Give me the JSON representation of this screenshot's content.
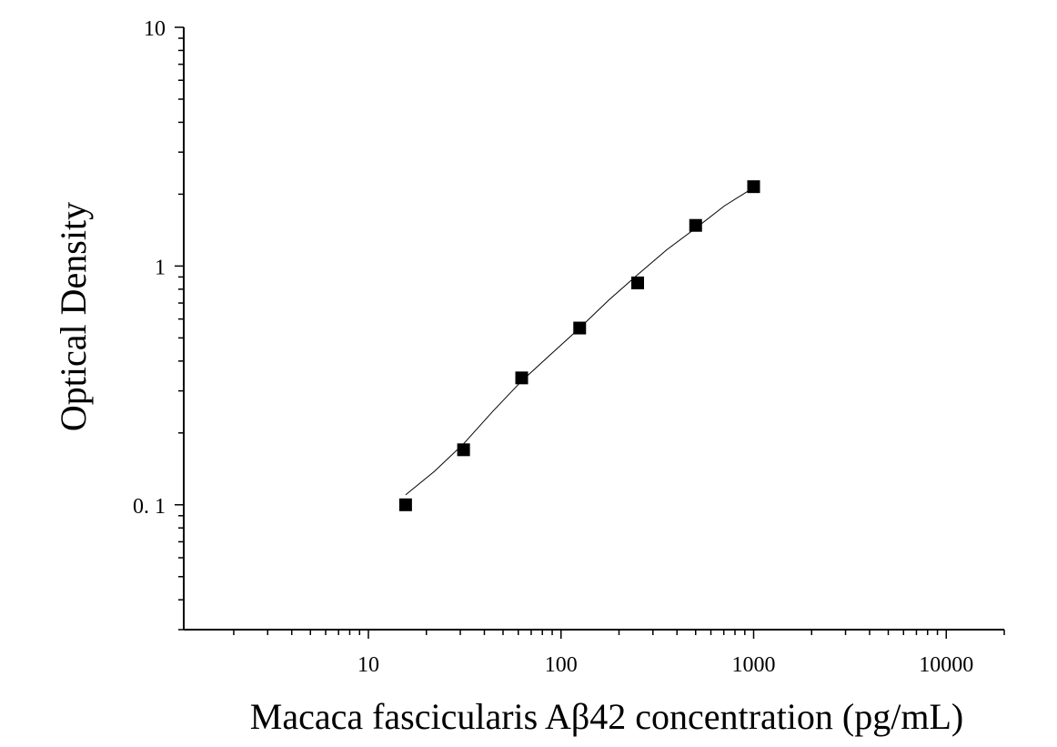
{
  "chart_data": {
    "type": "scatter",
    "xlabel": "Macaca fascicularis Aβ42 concentration (pg/mL)",
    "ylabel": "Optical Density",
    "x_scale": "log",
    "y_scale": "log",
    "xlim": [
      1.1,
      20000
    ],
    "ylim": [
      0.03,
      10
    ],
    "x_ticks": [
      {
        "value": 10,
        "label": "10"
      },
      {
        "value": 100,
        "label": "100"
      },
      {
        "value": 1000,
        "label": "1000"
      },
      {
        "value": 10000,
        "label": "10000"
      }
    ],
    "y_ticks": [
      {
        "value": 0.1,
        "label": "0. 1"
      },
      {
        "value": 1,
        "label": "1"
      },
      {
        "value": 10,
        "label": "10"
      }
    ],
    "grid": false,
    "series": [
      {
        "marker": "square",
        "color": "#000000",
        "x": [
          15.6,
          31.2,
          62.5,
          125,
          250,
          500,
          1000
        ],
        "y": [
          0.1,
          0.17,
          0.34,
          0.55,
          0.85,
          1.48,
          2.15
        ]
      }
    ],
    "fit_curve": {
      "color": "#000000",
      "x": [
        15.6,
        22,
        31.2,
        44,
        62.5,
        88,
        125,
        177,
        250,
        354,
        500,
        707,
        1000
      ],
      "y": [
        0.11,
        0.138,
        0.18,
        0.245,
        0.33,
        0.425,
        0.55,
        0.72,
        0.92,
        1.17,
        1.44,
        1.79,
        2.13
      ]
    }
  }
}
